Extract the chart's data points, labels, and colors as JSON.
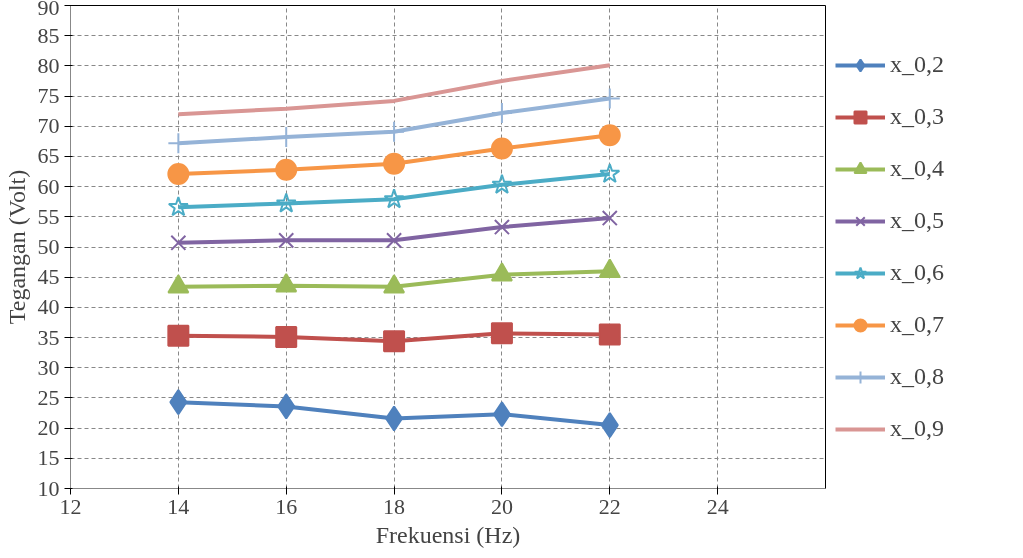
{
  "chart_data": {
    "type": "line",
    "xlabel": "Frekuensi (Hz)",
    "ylabel": "Tegangan (Volt)",
    "x": [
      14,
      16,
      18,
      20,
      22
    ],
    "xlim": [
      12,
      26
    ],
    "xticks": [
      12,
      14,
      16,
      18,
      20,
      22,
      24
    ],
    "ylim": [
      10,
      90
    ],
    "yticks": [
      10,
      15,
      20,
      25,
      30,
      35,
      40,
      45,
      50,
      55,
      60,
      65,
      70,
      75,
      80,
      85,
      90
    ],
    "grid": true,
    "legend": "right",
    "line_style": "solid",
    "series": [
      {
        "name": "x_0,2",
        "color": "#4f81bd",
        "marker": "diamond",
        "values": [
          24.3,
          23.6,
          21.6,
          22.3,
          20.5
        ]
      },
      {
        "name": "x_0,3",
        "color": "#c0504d",
        "marker": "square",
        "values": [
          35.3,
          35.1,
          34.4,
          35.7,
          35.5
        ]
      },
      {
        "name": "x_0,4",
        "color": "#9bbb59",
        "marker": "triangle",
        "values": [
          43.4,
          43.6,
          43.4,
          45.4,
          46.0
        ]
      },
      {
        "name": "x_0,5",
        "color": "#8064a2",
        "marker": "x",
        "values": [
          50.7,
          51.1,
          51.1,
          53.3,
          54.8
        ]
      },
      {
        "name": "x_0,6",
        "color": "#4bacc6",
        "marker": "star",
        "values": [
          56.6,
          57.2,
          57.9,
          60.3,
          62.1
        ]
      },
      {
        "name": "x_0,7",
        "color": "#f79646",
        "marker": "circle",
        "values": [
          62.1,
          62.8,
          63.8,
          66.3,
          68.5
        ]
      },
      {
        "name": "x_0,8",
        "color": "#95b3d7",
        "marker": "cross",
        "values": [
          67.2,
          68.2,
          69.1,
          72.2,
          74.6
        ]
      },
      {
        "name": "x_0,9",
        "color": "#d99694",
        "marker": "none",
        "values": [
          72.0,
          72.9,
          74.2,
          77.5,
          80.1
        ]
      }
    ]
  }
}
